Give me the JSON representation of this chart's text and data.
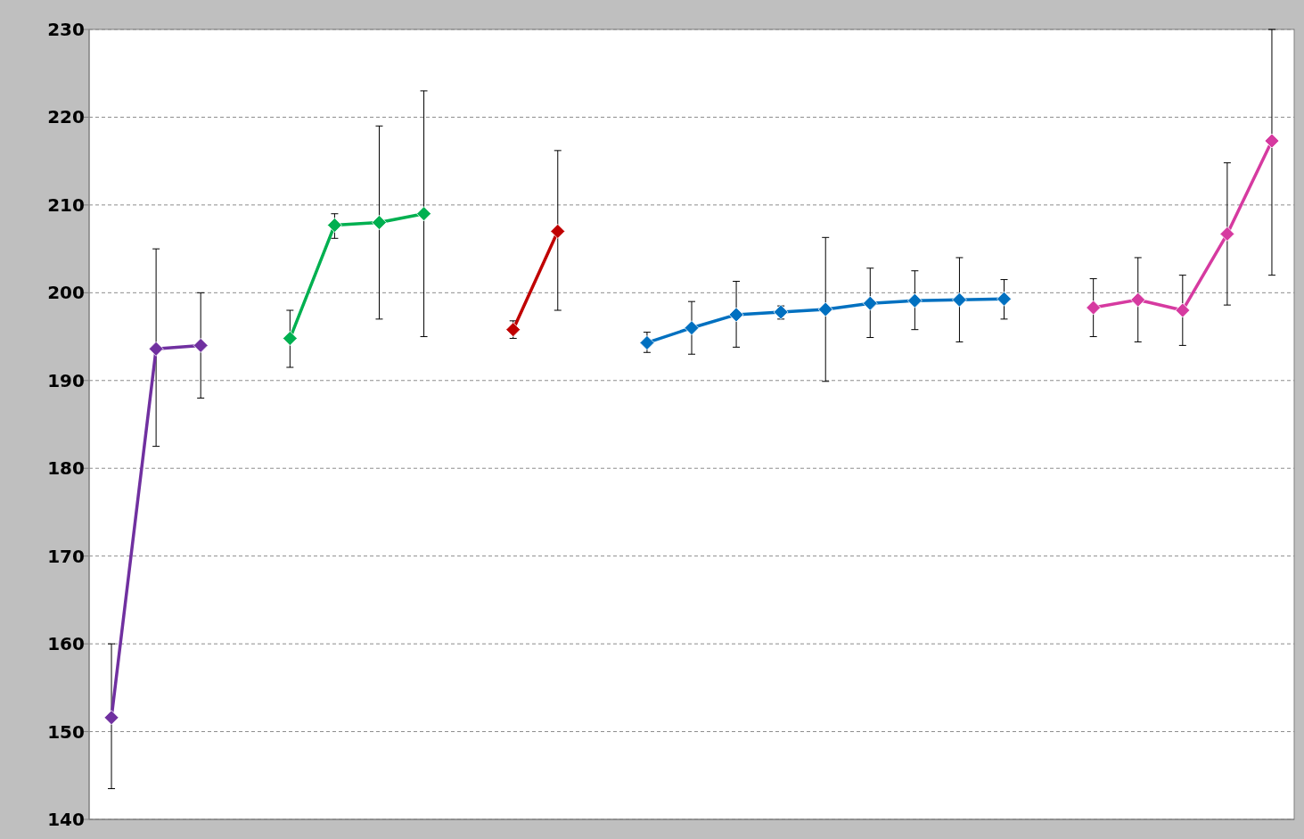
{
  "chart_data": {
    "type": "line",
    "categories": [
      null,
      null,
      null,
      null,
      null,
      null,
      null,
      null,
      null,
      null,
      null,
      null,
      null,
      null,
      null,
      null,
      null,
      null,
      null,
      null,
      null,
      null,
      null,
      null,
      null,
      null,
      null
    ],
    "ylim": [
      140,
      230
    ],
    "yticks": [
      140,
      150,
      160,
      170,
      180,
      190,
      200,
      210,
      220,
      230
    ],
    "grid": "y",
    "marker": "diamond",
    "line_style": "solid",
    "series": [
      {
        "color": "#7030a0",
        "values": [
          151.6,
          193.6,
          194,
          null,
          null,
          null,
          null,
          null,
          null,
          null,
          null,
          null,
          null,
          null,
          null,
          null,
          null,
          null,
          null,
          null,
          null,
          null,
          null,
          null,
          null,
          null,
          null
        ],
        "errors": [
          [
            143.5,
            160
          ],
          [
            182.5,
            205
          ],
          [
            188,
            200
          ],
          null,
          null,
          null,
          null,
          null,
          null,
          null,
          null,
          null,
          null,
          null,
          null,
          null,
          null,
          null,
          null,
          null,
          null,
          null,
          null,
          null,
          null,
          null,
          null
        ]
      },
      {
        "color": "#00b050",
        "values": [
          null,
          null,
          null,
          null,
          194.8,
          207.7,
          208,
          209,
          null,
          null,
          null,
          null,
          null,
          null,
          null,
          null,
          null,
          null,
          null,
          null,
          null,
          null,
          null,
          null,
          null,
          null,
          null
        ],
        "errors": [
          null,
          null,
          null,
          null,
          [
            191.5,
            198
          ],
          [
            206.2,
            209
          ],
          [
            197,
            219
          ],
          [
            195,
            223
          ],
          null,
          null,
          null,
          null,
          null,
          null,
          null,
          null,
          null,
          null,
          null,
          null,
          null,
          null,
          null,
          null,
          null,
          null,
          null
        ]
      },
      {
        "color": "#c00000",
        "values": [
          null,
          null,
          null,
          null,
          null,
          null,
          null,
          null,
          null,
          195.8,
          207,
          null,
          null,
          null,
          null,
          null,
          null,
          null,
          null,
          null,
          null,
          null,
          null,
          null,
          null,
          null,
          null
        ],
        "errors": [
          null,
          null,
          null,
          null,
          null,
          null,
          null,
          null,
          null,
          [
            194.8,
            196.8
          ],
          [
            198,
            216.2
          ],
          null,
          null,
          null,
          null,
          null,
          null,
          null,
          null,
          null,
          null,
          null,
          null,
          null,
          null,
          null,
          null
        ]
      },
      {
        "color": "#0070c0",
        "values": [
          null,
          null,
          null,
          null,
          null,
          null,
          null,
          null,
          null,
          null,
          null,
          null,
          194.3,
          196,
          197.5,
          197.8,
          198.1,
          198.8,
          199.1,
          199.2,
          199.3,
          null,
          null,
          null,
          null,
          null,
          null
        ],
        "errors": [
          null,
          null,
          null,
          null,
          null,
          null,
          null,
          null,
          null,
          null,
          null,
          null,
          [
            193.2,
            195.5
          ],
          [
            193,
            199
          ],
          [
            193.8,
            201.3
          ],
          [
            197,
            198.5
          ],
          [
            189.9,
            206.3
          ],
          [
            194.9,
            202.8
          ],
          [
            195.8,
            202.5
          ],
          [
            194.4,
            204
          ],
          [
            197,
            201.5
          ],
          null,
          null,
          null,
          null,
          null,
          null
        ]
      },
      {
        "color": "#d63aa0",
        "values": [
          null,
          null,
          null,
          null,
          null,
          null,
          null,
          null,
          null,
          null,
          null,
          null,
          null,
          null,
          null,
          null,
          null,
          null,
          null,
          null,
          null,
          null,
          198.3,
          199.2,
          198,
          206.7,
          217.3
        ],
        "errors": [
          null,
          null,
          null,
          null,
          null,
          null,
          null,
          null,
          null,
          null,
          null,
          null,
          null,
          null,
          null,
          null,
          null,
          null,
          null,
          null,
          null,
          null,
          [
            195,
            201.6
          ],
          [
            194.4,
            204
          ],
          [
            194,
            202
          ],
          [
            198.6,
            214.8
          ],
          [
            202,
            230
          ]
        ]
      }
    ]
  }
}
